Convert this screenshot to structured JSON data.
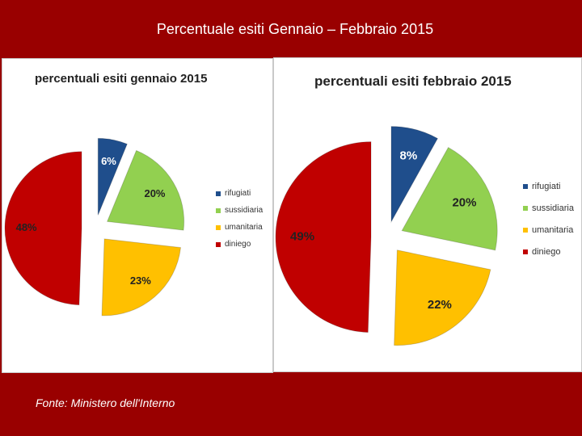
{
  "slide": {
    "title": "Percentuale esiti Gennaio – Febbraio 2015",
    "source": "Fonte: Ministero dell'Interno"
  },
  "chart_data": [
    {
      "type": "pie",
      "title": "percentuali esiti gennaio 2015",
      "legend_position": "right",
      "categories": [
        "rifugiati",
        "sussidiaria",
        "umanitaria",
        "diniego"
      ],
      "values": [
        6,
        20,
        23,
        48
      ],
      "labels": [
        "6%",
        "20%",
        "23%",
        "48%"
      ],
      "colors": [
        "#1f4e8c",
        "#92d050",
        "#ffc000",
        "#c00000"
      ],
      "label_colors": [
        "#ffffff",
        "#222222",
        "#222222",
        "#222222"
      ],
      "exploded": true
    },
    {
      "type": "pie",
      "title": "percentuali esiti febbraio 2015",
      "legend_position": "right",
      "categories": [
        "rifugiati",
        "sussidiaria",
        "umanitaria",
        "diniego"
      ],
      "values": [
        8,
        20,
        22,
        49
      ],
      "labels": [
        "8%",
        "20%",
        "22%",
        "49%"
      ],
      "colors": [
        "#1f4e8c",
        "#92d050",
        "#ffc000",
        "#c00000"
      ],
      "label_colors": [
        "#ffffff",
        "#222222",
        "#222222",
        "#222222"
      ],
      "exploded": true
    }
  ]
}
